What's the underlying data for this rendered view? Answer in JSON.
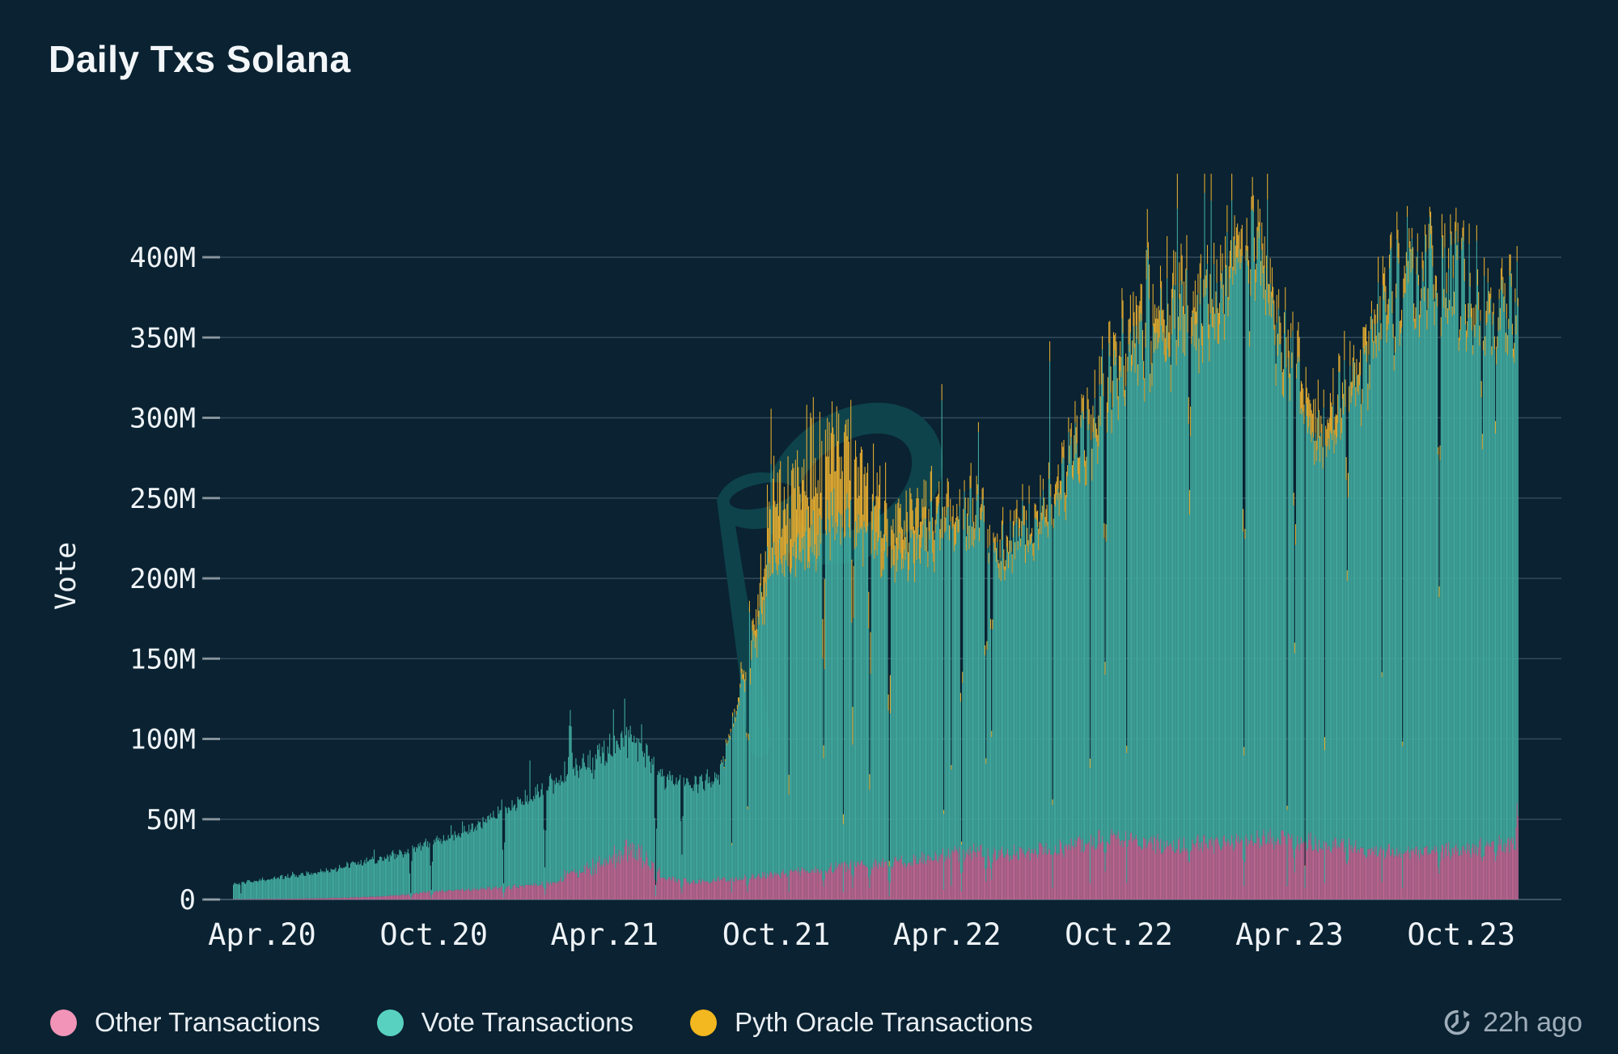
{
  "page": {
    "background": "#0a2231"
  },
  "header": {
    "title": "Daily Txs Solana"
  },
  "footer": {
    "updated": "22h ago",
    "updated_icon": "history-clock-icon"
  },
  "legend": {
    "items": [
      {
        "label": "Other Transactions",
        "series": "other"
      },
      {
        "label": "Vote Transactions",
        "series": "vote"
      },
      {
        "label": "Pyth Oracle Transactions",
        "series": "pyth"
      }
    ]
  },
  "chart_data": {
    "type": "bar",
    "subtype": "stacked-daily-bars",
    "title": "Daily Txs Solana",
    "xlabel": "",
    "ylabel": "Vote",
    "unit": "millions of transactions per day",
    "ylim": [
      0,
      460
    ],
    "grid": "horizontal every 50M",
    "legend_position": "bottom",
    "start_date": "2020-03-15",
    "end_date": "2023-12-14",
    "y_ticks": [
      {
        "v": 0,
        "label": "0"
      },
      {
        "v": 50,
        "label": "50M"
      },
      {
        "v": 100,
        "label": "100M"
      },
      {
        "v": 150,
        "label": "150M"
      },
      {
        "v": 200,
        "label": "200M"
      },
      {
        "v": 250,
        "label": "250M"
      },
      {
        "v": 300,
        "label": "300M"
      },
      {
        "v": 350,
        "label": "350M"
      },
      {
        "v": 400,
        "label": "400M"
      }
    ],
    "x_ticks": [
      {
        "date": "2020-04-15",
        "label": "Apr.20"
      },
      {
        "date": "2020-10-15",
        "label": "Oct.20"
      },
      {
        "date": "2021-04-15",
        "label": "Apr.21"
      },
      {
        "date": "2021-10-15",
        "label": "Oct.21"
      },
      {
        "date": "2022-04-15",
        "label": "Apr.22"
      },
      {
        "date": "2022-10-15",
        "label": "Oct.22"
      },
      {
        "date": "2023-04-15",
        "label": "Apr.23"
      },
      {
        "date": "2023-10-15",
        "label": "Oct.23"
      }
    ],
    "categories": [
      "2020-03",
      "2020-04",
      "2020-05",
      "2020-06",
      "2020-07",
      "2020-08",
      "2020-09",
      "2020-10",
      "2020-11",
      "2020-12",
      "2021-01",
      "2021-02",
      "2021-03",
      "2021-04",
      "2021-05",
      "2021-06",
      "2021-07",
      "2021-08",
      "2021-09",
      "2021-10",
      "2021-11",
      "2021-12",
      "2022-01",
      "2022-02",
      "2022-03",
      "2022-04",
      "2022-05",
      "2022-06",
      "2022-07",
      "2022-08",
      "2022-09",
      "2022-10",
      "2022-11",
      "2022-12",
      "2023-01",
      "2023-02",
      "2023-03",
      "2023-04",
      "2023-05",
      "2023-06",
      "2023-07",
      "2023-08",
      "2023-09",
      "2023-10",
      "2023-11",
      "2023-12"
    ],
    "series": [
      {
        "key": "other",
        "name": "Other Transactions",
        "color_bar": "#bd6791",
        "color_legend": "#f194b8",
        "monthly_avg_M": [
          0.3,
          0.4,
          0.5,
          0.8,
          1.2,
          1.8,
          3,
          5,
          6,
          7,
          8,
          10,
          14,
          18,
          24,
          14,
          11,
          12,
          14,
          16,
          18,
          20,
          22,
          22,
          25,
          28,
          30,
          28,
          30,
          32,
          36,
          38,
          36,
          33,
          34,
          36,
          38,
          38,
          35,
          32,
          30,
          29,
          30,
          31,
          33,
          35
        ]
      },
      {
        "key": "vote",
        "name": "Vote Transactions",
        "color_bar": "#41a99e",
        "color_legend": "#58d1c1",
        "monthly_avg_M": [
          9,
          12,
          14,
          16,
          20,
          23,
          26,
          31,
          36,
          44,
          52,
          60,
          65,
          68,
          70,
          62,
          60,
          64,
          130,
          205,
          200,
          215,
          210,
          195,
          195,
          210,
          205,
          185,
          205,
          225,
          255,
          290,
          310,
          320,
          325,
          345,
          350,
          290,
          245,
          280,
          320,
          350,
          355,
          350,
          335,
          320
        ]
      },
      {
        "key": "pyth",
        "name": "Pyth Oracle Transactions",
        "color_bar": "#e2ab31",
        "color_legend": "#f3b71f",
        "monthly_avg_M": [
          0,
          0,
          0,
          0,
          0,
          0,
          0,
          0,
          0,
          0,
          0,
          0,
          0,
          0,
          0,
          0,
          0,
          0,
          6,
          28,
          32,
          35,
          28,
          20,
          16,
          13,
          11,
          9,
          9,
          11,
          14,
          16,
          18,
          22,
          18,
          16,
          15,
          14,
          18,
          14,
          13,
          12,
          11,
          10,
          10,
          9
        ]
      }
    ],
    "events": {
      "spikes_total_M": [
        [
          "2021-03-09",
          118
        ],
        [
          "2021-05-12",
          102
        ],
        [
          "2021-12-14",
          292
        ],
        [
          "2022-10-26",
          362
        ],
        [
          "2022-11-14",
          430
        ],
        [
          "2023-02-18",
          421
        ],
        [
          "2023-03-06",
          450
        ],
        [
          "2023-03-12",
          436
        ],
        [
          "2023-07-31",
          414
        ],
        [
          "2023-08-21",
          410
        ]
      ],
      "dips_total_M": [
        [
          "2020-09-20",
          4
        ],
        [
          "2020-10-12",
          6
        ],
        [
          "2020-12-28",
          10
        ],
        [
          "2021-02-10",
          20
        ],
        [
          "2021-06-08",
          9
        ],
        [
          "2021-07-06",
          28
        ],
        [
          "2021-09-14",
          58
        ],
        [
          "2021-12-04",
          96
        ],
        [
          "2022-01-04",
          120
        ],
        [
          "2022-01-22",
          78
        ],
        [
          "2022-02-12",
          24
        ],
        [
          "2022-04-30",
          36
        ],
        [
          "2022-05-26",
          88
        ],
        [
          "2022-06-01",
          105
        ],
        [
          "2022-09-30",
          148
        ],
        [
          "2022-12-29",
          255
        ],
        [
          "2023-02-25",
          95
        ],
        [
          "2023-04-20",
          160
        ],
        [
          "2023-06-15",
          205
        ],
        [
          "2023-09-21",
          195
        ],
        [
          "2023-11-06",
          290
        ],
        [
          "2023-11-20",
          298
        ]
      ],
      "other_spikes_M": [
        [
          "2023-12-13",
          60
        ]
      ]
    },
    "colors": {
      "background": "#0a2231",
      "gridline": "#8da6bd",
      "axis_text": "#eef3f7",
      "watermark": "#0e434c",
      "updated_text": "#9fadba"
    }
  }
}
